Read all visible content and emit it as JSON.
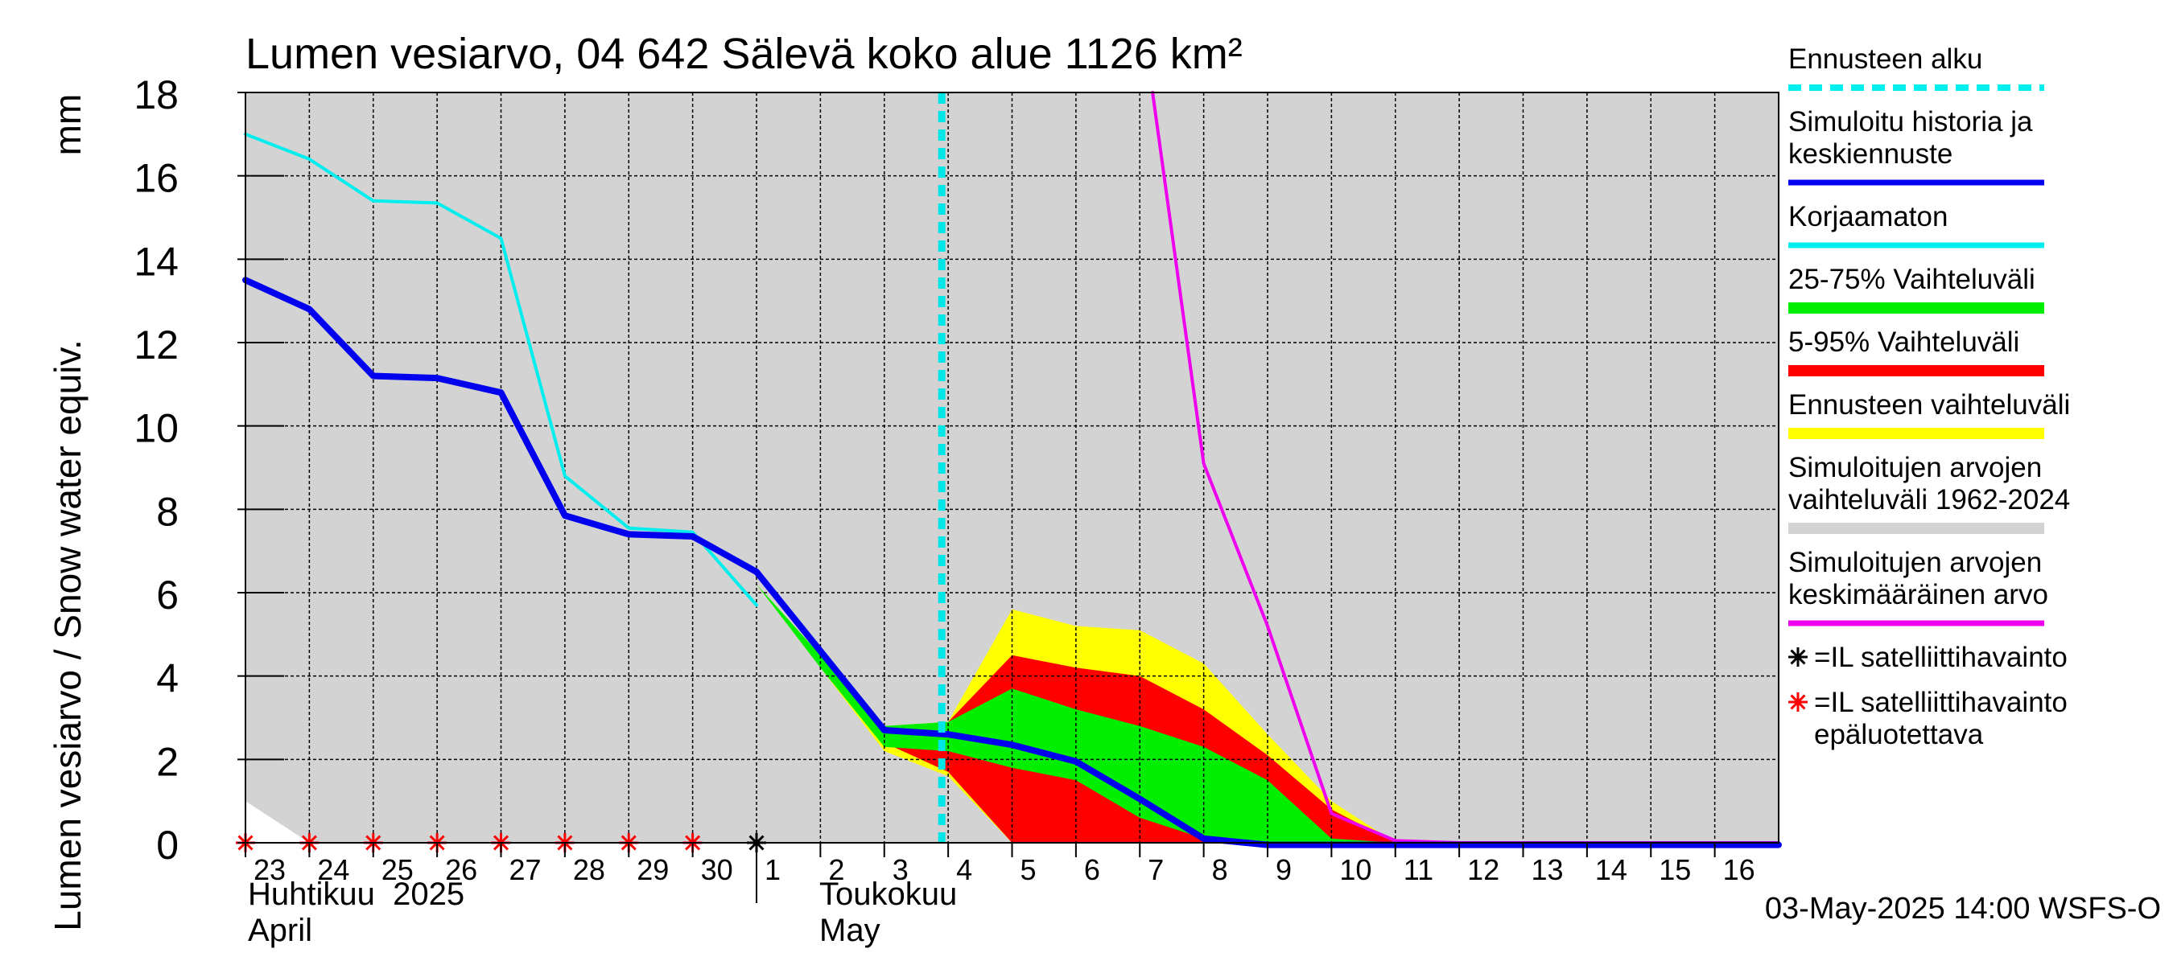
{
  "chart_data": {
    "type": "line",
    "title": "Lumen vesiarvo, 04 642 Sälevä koko alue 1126 km²",
    "ylabel": "Lumen vesiarvo / Snow water equiv.",
    "yunit": "mm",
    "ylim": [
      0,
      18
    ],
    "yticks": [
      0,
      2,
      4,
      6,
      8,
      10,
      12,
      14,
      16,
      18
    ],
    "x_day_labels": [
      "23",
      "24",
      "25",
      "26",
      "27",
      "28",
      "29",
      "30",
      "1",
      "2",
      "3",
      "4",
      "5",
      "6",
      "7",
      "8",
      "9",
      "10",
      "11",
      "12",
      "13",
      "14",
      "15",
      "16"
    ],
    "month_labels": [
      {
        "fi": "Huhtikuu  2025",
        "en": "April"
      },
      {
        "fi": "Toukokuu",
        "en": "May"
      }
    ],
    "grid": true,
    "legend_position": "right",
    "forecast_start_day": 10.9,
    "series": [
      {
        "name": "Simuloitujen arvojen vaihteluväli 1962-2024",
        "type": "area",
        "color": "#d3d3d3",
        "upper": [
          [
            0,
            18
          ],
          [
            24,
            18
          ]
        ],
        "lower": [
          [
            0,
            1.0
          ],
          [
            1,
            0
          ],
          [
            24,
            0
          ]
        ]
      },
      {
        "name": "Ennusteen vaihteluväli",
        "type": "area",
        "color": "#ffff00",
        "upper": [
          [
            8,
            6.2
          ],
          [
            9,
            4.5
          ],
          [
            10,
            2.8
          ],
          [
            11,
            2.9
          ],
          [
            12,
            5.6
          ],
          [
            13,
            5.2
          ],
          [
            14,
            5.1
          ],
          [
            15,
            4.3
          ],
          [
            16,
            2.6
          ],
          [
            17,
            1.0
          ],
          [
            18,
            0
          ],
          [
            24,
            0
          ]
        ],
        "lower": [
          [
            8,
            6.2
          ],
          [
            9,
            4.2
          ],
          [
            10,
            2.2
          ],
          [
            11,
            1.6
          ],
          [
            12,
            0
          ],
          [
            24,
            0
          ]
        ]
      },
      {
        "name": "5-95% Vaihteluväli",
        "type": "area",
        "color": "#ff0000",
        "upper": [
          [
            8,
            6.2
          ],
          [
            9,
            4.4
          ],
          [
            10,
            2.6
          ],
          [
            11,
            2.9
          ],
          [
            12,
            4.5
          ],
          [
            13,
            4.2
          ],
          [
            14,
            4.0
          ],
          [
            15,
            3.2
          ],
          [
            16,
            2.1
          ],
          [
            17,
            0.8
          ],
          [
            18,
            0
          ],
          [
            24,
            0
          ]
        ],
        "lower": [
          [
            8,
            6.2
          ],
          [
            9,
            4.3
          ],
          [
            10,
            2.4
          ],
          [
            11,
            1.7
          ],
          [
            12,
            0
          ],
          [
            24,
            0
          ]
        ]
      },
      {
        "name": "25-75% Vaihteluväli",
        "type": "area",
        "color": "#00ee00",
        "upper": [
          [
            8,
            6.2
          ],
          [
            9,
            4.5
          ],
          [
            10,
            2.8
          ],
          [
            11,
            2.9
          ],
          [
            12,
            3.7
          ],
          [
            13,
            3.2
          ],
          [
            14,
            2.8
          ],
          [
            15,
            2.3
          ],
          [
            16,
            1.5
          ],
          [
            17,
            0.1
          ],
          [
            18,
            0
          ],
          [
            24,
            0
          ]
        ],
        "lower": [
          [
            8,
            6.2
          ],
          [
            9,
            4.2
          ],
          [
            10,
            2.3
          ],
          [
            11,
            2.2
          ],
          [
            12,
            1.8
          ],
          [
            13,
            1.5
          ],
          [
            14,
            0.6
          ],
          [
            15,
            0.1
          ],
          [
            16,
            0
          ],
          [
            24,
            0
          ]
        ]
      },
      {
        "name": "Simuloitujen arvojen keskimääräinen arvo",
        "type": "line",
        "color": "#ee00ee",
        "width": 4,
        "points": [
          [
            14.2,
            18
          ],
          [
            15,
            9.1
          ],
          [
            16,
            5.2
          ],
          [
            17,
            0.7
          ],
          [
            18,
            0.05
          ],
          [
            19,
            0
          ],
          [
            24,
            0
          ]
        ]
      },
      {
        "name": "Korjaamaton",
        "type": "line",
        "color": "#00eeee",
        "width": 4,
        "points": [
          [
            0,
            17.0
          ],
          [
            1,
            16.4
          ],
          [
            2,
            15.4
          ],
          [
            3,
            15.35
          ],
          [
            4,
            14.5
          ],
          [
            5,
            8.8
          ],
          [
            6,
            7.55
          ],
          [
            7,
            7.45
          ],
          [
            8,
            5.7
          ]
        ]
      },
      {
        "name": "Simuloitu historia ja keskiennuste",
        "type": "line",
        "color": "#0000ee",
        "width": 8,
        "points": [
          [
            0,
            13.5
          ],
          [
            1,
            12.8
          ],
          [
            2,
            11.2
          ],
          [
            3,
            11.15
          ],
          [
            4,
            10.8
          ],
          [
            5,
            7.85
          ],
          [
            6,
            7.4
          ],
          [
            7,
            7.35
          ],
          [
            8,
            6.5
          ],
          [
            9,
            4.6
          ],
          [
            10,
            2.7
          ],
          [
            11,
            2.6
          ],
          [
            12,
            2.35
          ],
          [
            13,
            1.95
          ],
          [
            14,
            1.05
          ],
          [
            15,
            0.1
          ],
          [
            16,
            -0.05
          ],
          [
            17,
            -0.05
          ],
          [
            24,
            -0.05
          ]
        ]
      },
      {
        "name": "=IL satelliittihavainto",
        "type": "scatter",
        "marker": "asterisk",
        "color": "#000000",
        "points": [
          [
            8,
            0
          ]
        ]
      },
      {
        "name": "=IL satelliittihavainto epäluotettava",
        "type": "scatter",
        "marker": "asterisk",
        "color": "#ff0000",
        "points": [
          [
            0,
            0
          ],
          [
            1,
            0
          ],
          [
            2,
            0
          ],
          [
            3,
            0
          ],
          [
            4,
            0
          ],
          [
            5,
            0
          ],
          [
            6,
            0
          ],
          [
            7,
            0
          ]
        ]
      }
    ],
    "legend": [
      {
        "label": "Ennusteen alku",
        "style": "dash",
        "color": "#00eeee"
      },
      {
        "label": "Simuloitu historia ja keskiennuste",
        "style": "line",
        "color": "#0000ee"
      },
      {
        "label": "Korjaamaton",
        "style": "line",
        "color": "#00eeee"
      },
      {
        "label": "25-75% Vaihteluväli",
        "style": "thick",
        "color": "#00ee00"
      },
      {
        "label": "5-95% Vaihteluväli",
        "style": "thick",
        "color": "#ff0000"
      },
      {
        "label": "Ennusteen vaihteluväli",
        "style": "thick",
        "color": "#ffff00"
      },
      {
        "label": "Simuloitujen arvojen vaihteluväli 1962-2024",
        "style": "thick",
        "color": "#d3d3d3"
      },
      {
        "label": "Simuloitujen arvojen keskimääräinen arvo",
        "style": "line",
        "color": "#ee00ee"
      },
      {
        "label": "=IL satelliittihavainto",
        "style": "marker",
        "color": "#000000"
      },
      {
        "label": "=IL satelliittihavainto epäluotettava",
        "style": "marker",
        "color": "#ff0000"
      }
    ],
    "footer": "03-May-2025 14:00 WSFS-O"
  }
}
